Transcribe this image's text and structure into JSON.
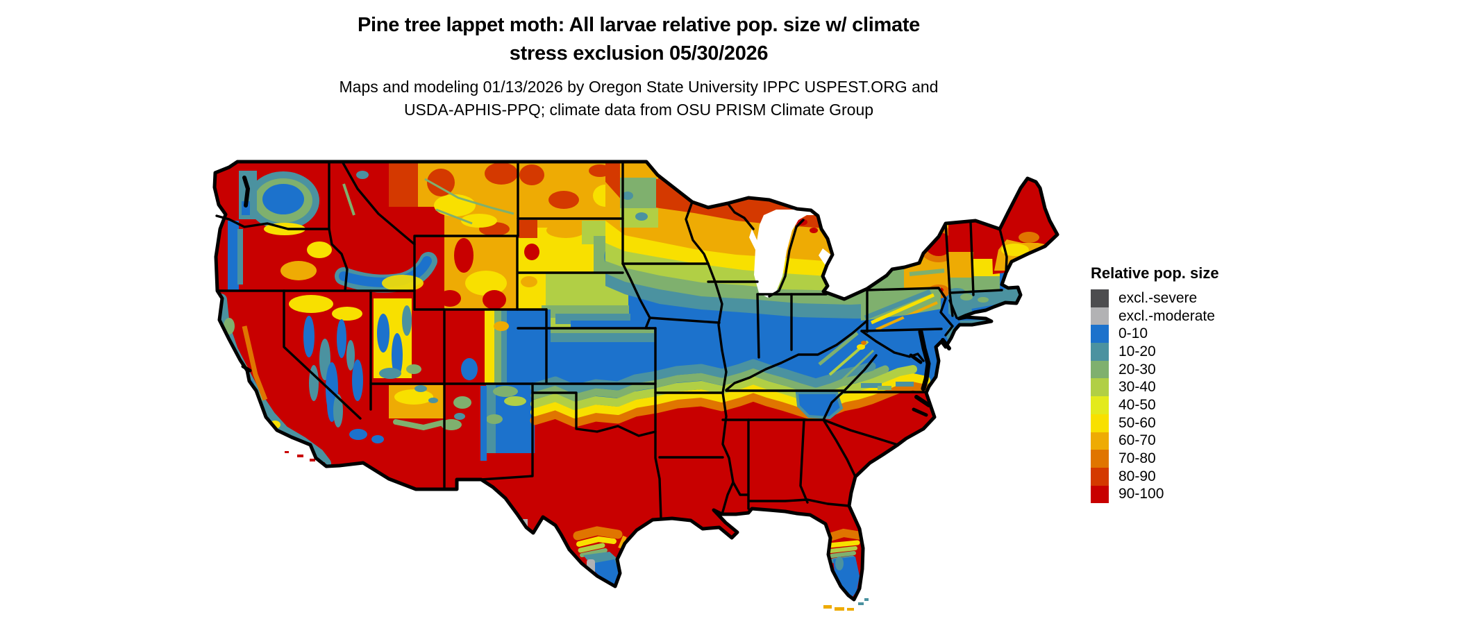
{
  "header": {
    "title_line1": "Pine tree lappet moth: All larvae relative pop. size w/ climate",
    "title_line2": "stress exclusion 05/30/2026",
    "subtitle_line1": "Maps and modeling 01/13/2026 by Oregon State University IPPC USPEST.ORG and",
    "subtitle_line2": "USDA-APHIS-PPQ; climate data from OSU PRISM Climate Group"
  },
  "legend": {
    "title": "Relative pop. size",
    "items": [
      {
        "label": "excl.-severe",
        "color": "#4d4d4f"
      },
      {
        "label": "excl.-moderate",
        "color": "#b2b2b4"
      },
      {
        "label": "0-10",
        "color": "#1c72cc"
      },
      {
        "label": "10-20",
        "color": "#4b92a0"
      },
      {
        "label": "20-30",
        "color": "#7fb06e"
      },
      {
        "label": "30-40",
        "color": "#b1cf45"
      },
      {
        "label": "40-50",
        "color": "#e3ea1c"
      },
      {
        "label": "50-60",
        "color": "#f8e000"
      },
      {
        "label": "60-70",
        "color": "#eeab04"
      },
      {
        "label": "70-80",
        "color": "#e07500"
      },
      {
        "label": "80-90",
        "color": "#d43900"
      },
      {
        "label": "90-100",
        "color": "#c80000"
      }
    ]
  },
  "map": {
    "type": "raster choropleth",
    "region": "Contiguous United States",
    "boundary_color": "#000000",
    "water_color": "#ffffff"
  }
}
